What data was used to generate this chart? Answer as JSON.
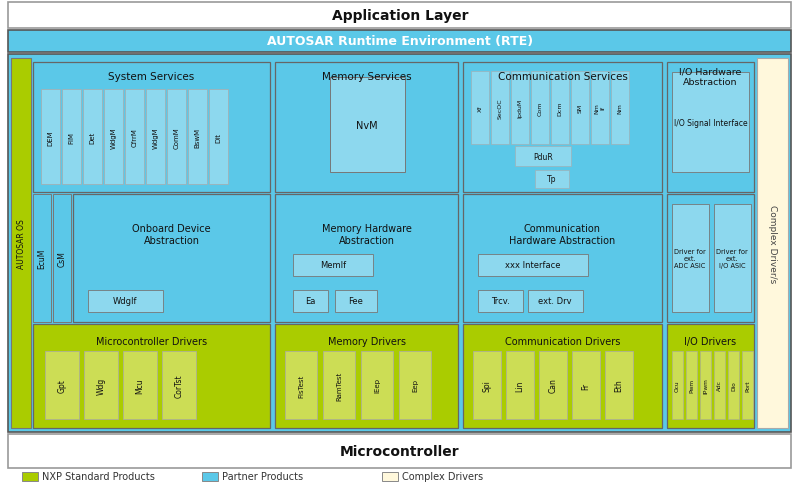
{
  "colors": {
    "blue": "#5BC8E8",
    "blue_dark": "#29ABE2",
    "green": "#AACC00",
    "yellow": "#FFF8DC",
    "white": "#FFFFFF",
    "light_blue_box": "#8DD8EE"
  },
  "app_layer": "Application Layer",
  "rte_label": "AUTOSAR Runtime Environment (RTE)",
  "micro_label": "Microcontroller",
  "autosar_os": "AUTOSAR OS",
  "complex_drivers": "Complex Driver/s",
  "sections": {
    "sys_services": "System Services",
    "mem_services": "Memory Services",
    "comm_services": "Communication Services",
    "io_hw_abs": "I/O Hardware Abstraction",
    "ob_dev_abs": "Onboard Device\nAbstraction",
    "mem_hw_abs": "Memory Hardware\nAbstraction",
    "comm_hw_abs": "Communication\nHardware Abstraction",
    "mc_drivers": "Microcontroller Drivers",
    "mem_drivers": "Memory Drivers",
    "comm_drivers": "Communication Drivers",
    "io_drivers": "I/O Drivers"
  },
  "sys_items": [
    "DEM",
    "FIM",
    "Det",
    "WdgM",
    "CfrrM",
    "WdgM",
    "ComM",
    "BswM",
    "Dit"
  ],
  "ecum_csm": [
    "EcuM",
    "CsM"
  ],
  "nvm_label": "NvM",
  "memif_label": "MemIf",
  "ea_label": "Ea",
  "fee_label": "Fee",
  "wdgif_label": "WdgIf",
  "xxx_label": "xxx Interface",
  "trcv_label": "Trcv.",
  "extdrv_label": "ext. Drv",
  "io_sig_label": "I/O Signal Interface",
  "adc_label": "Driver for\next.\nADC ASIC",
  "io_asic_label": "Driver for\next.\nI/O ASIC",
  "comm_items": [
    "Xf",
    "SecOC",
    "IpduM",
    "Com",
    "Dcm",
    "SM",
    "Nm\nIf",
    "Nm"
  ],
  "pdur_label": "PduR",
  "tp_label": "Tp",
  "nm_label": "Nm",
  "mc_drv_items": [
    "Gpt",
    "Wdg",
    "Mcu",
    "CorTst"
  ],
  "mem_drv_items": [
    "FlsTest",
    "RamTest",
    "IEep",
    "Eep"
  ],
  "comm_drv_items": [
    "Spi",
    "Lin",
    "Can",
    "Fr",
    "Eth"
  ],
  "io_drv_items": [
    "Ocu",
    "Pwm",
    "IPwm",
    "Adc",
    "Dio",
    "Port"
  ],
  "legend": [
    {
      "label": "NXP Standard Products",
      "color": "#AACC00"
    },
    {
      "label": "Partner Products",
      "color": "#5BC8E8"
    },
    {
      "label": "Complex Drivers",
      "color": "#FFF8DC"
    }
  ]
}
